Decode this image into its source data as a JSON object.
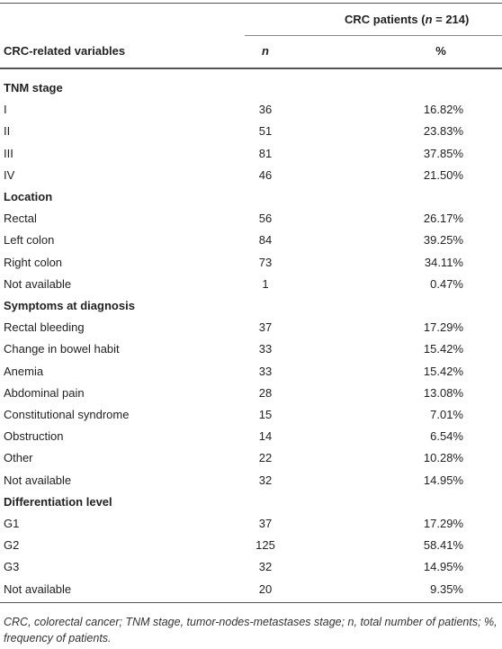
{
  "table": {
    "header": {
      "group": [
        "CRC patients (",
        "n",
        " = 214)"
      ],
      "columns": [
        "CRC-related variables",
        "n",
        "%"
      ]
    },
    "sections": [
      {
        "title": "TNM stage",
        "rows": [
          [
            "I",
            "36",
            "16.82%"
          ],
          [
            "II",
            "51",
            "23.83%"
          ],
          [
            "III",
            "81",
            "37.85%"
          ],
          [
            "IV",
            "46",
            "21.50%"
          ]
        ]
      },
      {
        "title": "Location",
        "rows": [
          [
            "Rectal",
            "56",
            "26.17%"
          ],
          [
            "Left colon",
            "84",
            "39.25%"
          ],
          [
            "Right colon",
            "73",
            "34.11%"
          ],
          [
            "Not available",
            "1",
            "0.47%"
          ]
        ]
      },
      {
        "title": "Symptoms at diagnosis",
        "rows": [
          [
            "Rectal bleeding",
            "37",
            "17.29%"
          ],
          [
            "Change in bowel habit",
            "33",
            "15.42%"
          ],
          [
            "Anemia",
            "33",
            "15.42%"
          ],
          [
            "Abdominal pain",
            "28",
            "13.08%"
          ],
          [
            "Constitutional syndrome",
            "15",
            "7.01%"
          ],
          [
            "Obstruction",
            "14",
            "6.54%"
          ],
          [
            "Other",
            "22",
            "10.28%"
          ],
          [
            "Not available",
            "32",
            "14.95%"
          ]
        ]
      },
      {
        "title": "Differentiation level",
        "rows": [
          [
            "G1",
            "37",
            "17.29%"
          ],
          [
            "G2",
            "125",
            "58.41%"
          ],
          [
            "G3",
            "32",
            "14.95%"
          ],
          [
            "Not available",
            "20",
            "9.35%"
          ]
        ]
      }
    ],
    "footnote": "CRC, colorectal cancer; TNM stage, tumor-nodes-metastases stage; n, total number of patients; %, frequency of patients."
  }
}
